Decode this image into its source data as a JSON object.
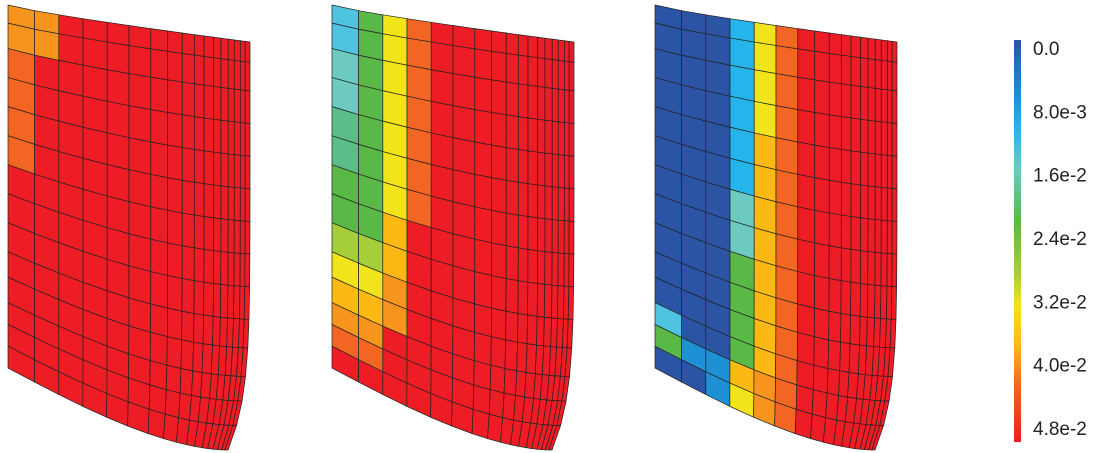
{
  "colorbar": {
    "labels": [
      "0.0",
      "8.0e-3",
      "1.6e-2",
      "2.4e-2",
      "3.2e-2",
      "4.0e-2",
      "4.8e-2"
    ]
  }
}
